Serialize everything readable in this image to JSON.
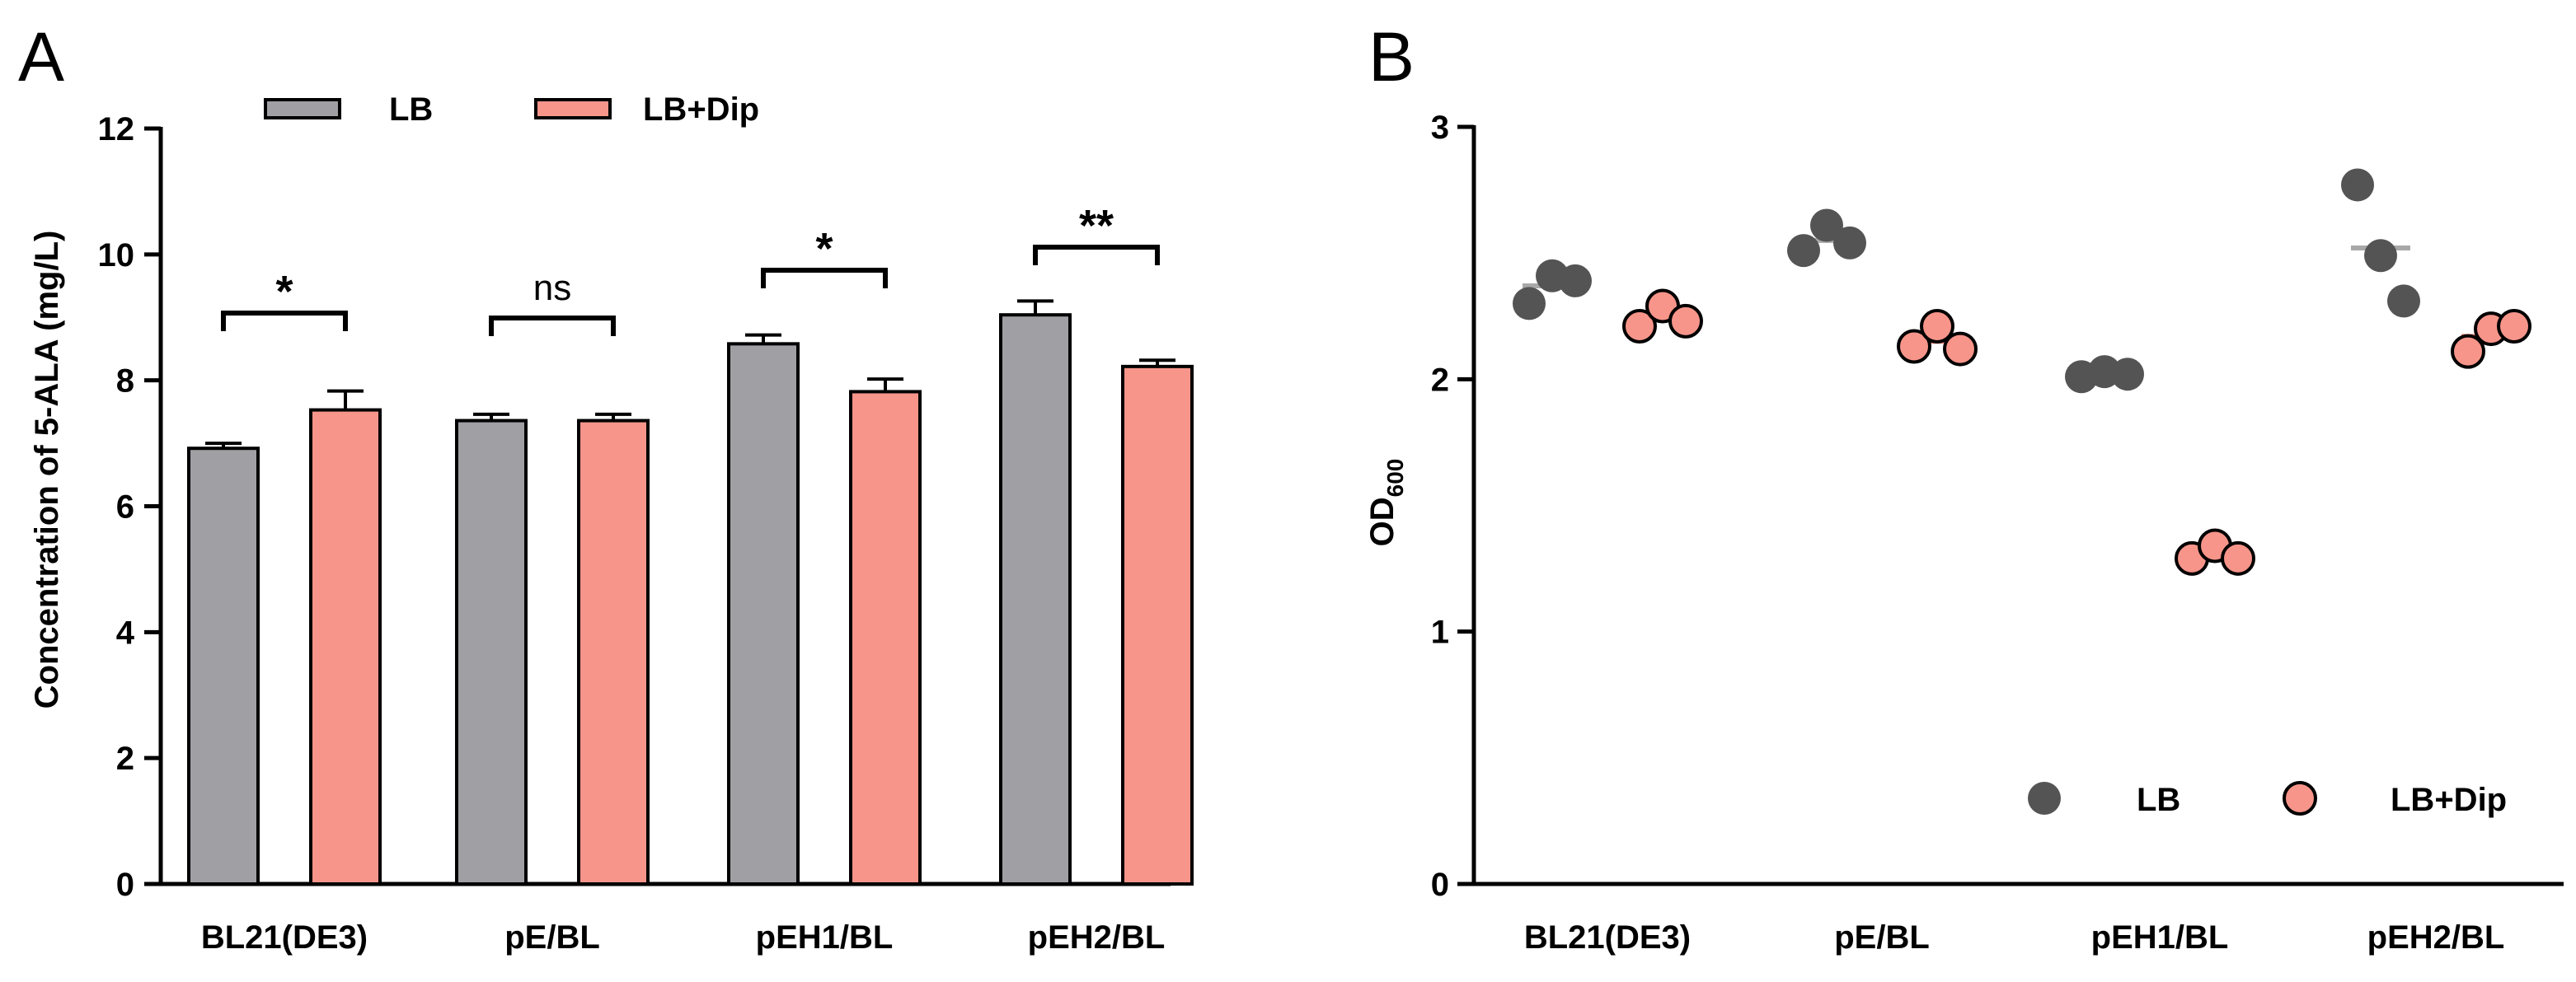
{
  "chart_data": [
    {
      "panel": "A",
      "type": "bar",
      "ylabel": "Concentration of 5-ALA (mg/L)",
      "ylim": [
        0,
        12
      ],
      "yticks": [
        0,
        2,
        4,
        6,
        8,
        10,
        12
      ],
      "categories": [
        "BL21(DE3)",
        "pE/BL",
        "pEH1/BL",
        "pEH2/BL"
      ],
      "series": [
        {
          "name": "LB",
          "color": "#a09fa4",
          "values": [
            6.92,
            7.36,
            8.58,
            9.04
          ],
          "errors": [
            0.08,
            0.1,
            0.14,
            0.22
          ]
        },
        {
          "name": "LB+Dip",
          "color": "#f7958a",
          "values": [
            7.53,
            7.36,
            7.82,
            8.22
          ],
          "errors": [
            0.3,
            0.1,
            0.2,
            0.1
          ]
        }
      ],
      "significance": [
        "*",
        "ns",
        "*",
        "**"
      ],
      "legend": "top"
    },
    {
      "panel": "B",
      "type": "scatter",
      "ylabel_main": "OD",
      "ylabel_sub": "600",
      "ylim": [
        0,
        3
      ],
      "yticks": [
        0,
        1,
        2,
        3
      ],
      "categories": [
        "BL21(DE3)",
        "pE/BL",
        "pEH1/BL",
        "pEH2/BL"
      ],
      "series": [
        {
          "name": "LB",
          "color": "#545454",
          "points": [
            [
              2.3,
              2.41,
              2.39
            ],
            [
              2.51,
              2.61,
              2.54
            ],
            [
              2.01,
              2.03,
              2.02
            ],
            [
              2.77,
              2.49,
              2.31
            ]
          ],
          "means": [
            2.37,
            2.55,
            2.02,
            2.52
          ]
        },
        {
          "name": "LB+Dip",
          "color": "#f7958a",
          "points": [
            [
              2.21,
              2.29,
              2.23
            ],
            [
              2.13,
              2.21,
              2.12
            ],
            [
              1.29,
              1.34,
              1.29
            ],
            [
              2.11,
              2.2,
              2.21
            ]
          ],
          "means": [
            2.24,
            2.15,
            1.31,
            2.17
          ]
        }
      ],
      "legend": "bottom-right"
    }
  ]
}
